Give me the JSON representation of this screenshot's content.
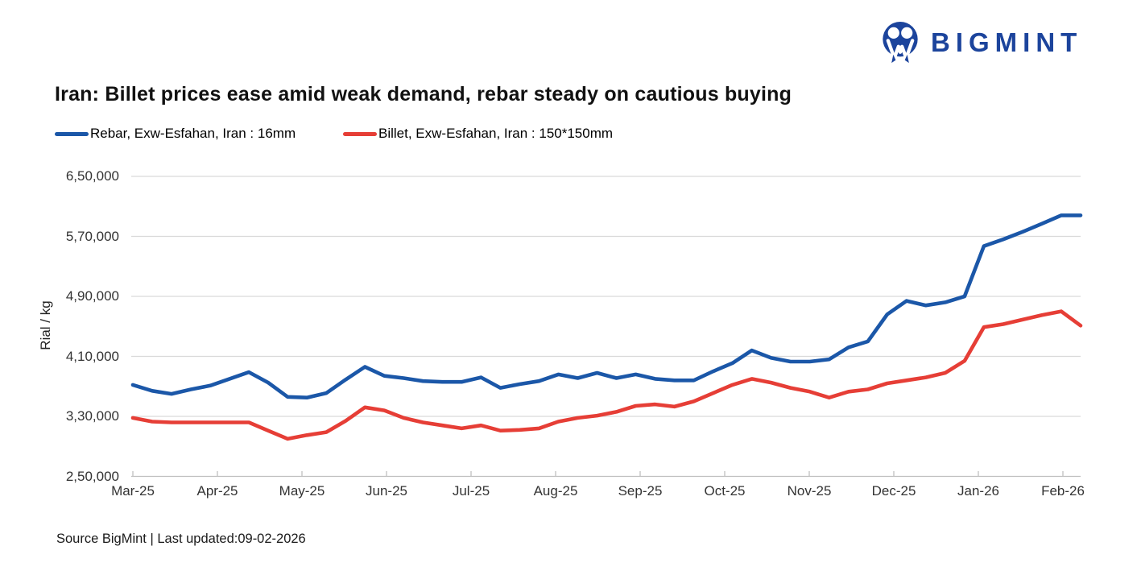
{
  "header": {
    "logo_text": "BIGMINT",
    "logo_color": "#1c449c"
  },
  "title": "Iran: Billet prices ease amid weak demand, rebar steady on cautious buying",
  "legend": [
    {
      "label": "Rebar, Exw-Esfahan, Iran : 16mm"
    },
    {
      "label": "Billet, Exw-Esfahan, Iran : 150*150mm"
    }
  ],
  "footer": {
    "source": "Source BigMint | Last updated:09-02-2026"
  },
  "chart_data": {
    "type": "line",
    "title": "Iran: Billet prices ease amid weak demand, rebar steady on cautious buying",
    "xlabel": "",
    "ylabel": "Rial / kg",
    "ylim": [
      250000,
      650000
    ],
    "grid": "horizontal",
    "legend_position": "top-left",
    "yticks": {
      "values": [
        250000,
        330000,
        410000,
        490000,
        570000,
        650000
      ],
      "labels": [
        "2,50,000",
        "3,30,000",
        "4,10,000",
        "4,90,000",
        "5,70,000",
        "6,50,000"
      ]
    },
    "x_tick_labels": [
      "Mar-25",
      "Apr-25",
      "May-25",
      "Jun-25",
      "Jul-25",
      "Aug-25",
      "Sep-25",
      "Oct-25",
      "Nov-25",
      "Dec-25",
      "Jan-26",
      "Feb-26"
    ],
    "series": [
      {
        "name": "Rebar, Exw-Esfahan, Iran : 16mm",
        "color": "#1b57a8",
        "values": [
          372000,
          364000,
          360000,
          366000,
          371000,
          380000,
          389000,
          375000,
          356000,
          355000,
          361000,
          379000,
          396000,
          384000,
          381000,
          377000,
          376000,
          376000,
          382000,
          368000,
          373000,
          377000,
          386000,
          381000,
          388000,
          381000,
          386000,
          380000,
          378000,
          378000,
          390000,
          401000,
          418000,
          408000,
          403000,
          403000,
          406000,
          422000,
          430000,
          466000,
          484000,
          478000,
          482000,
          490000,
          557000,
          566000,
          576000,
          587000,
          598000,
          598000
        ]
      },
      {
        "name": "Billet, Exw-Esfahan, Iran : 150*150mm",
        "color": "#e63e36",
        "values": [
          328000,
          323000,
          322000,
          322000,
          322000,
          322000,
          322000,
          311000,
          300000,
          305000,
          309000,
          324000,
          342000,
          338000,
          328000,
          322000,
          318000,
          314000,
          318000,
          311000,
          312000,
          314000,
          323000,
          328000,
          331000,
          336000,
          344000,
          346000,
          343000,
          350000,
          361000,
          372000,
          380000,
          375000,
          368000,
          363000,
          355000,
          363000,
          366000,
          374000,
          378000,
          382000,
          388000,
          404000,
          449000,
          453000,
          459000,
          465000,
          470000,
          451000
        ]
      }
    ]
  }
}
